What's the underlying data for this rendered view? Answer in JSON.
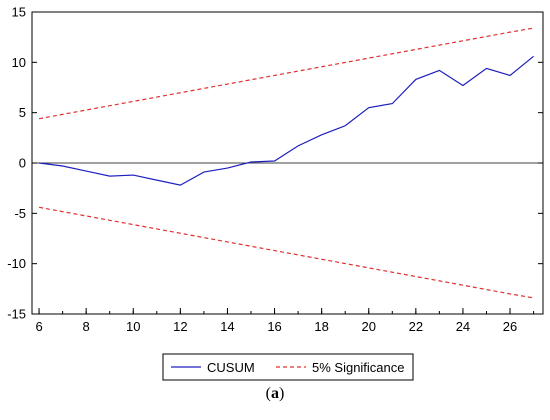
{
  "chart_data": {
    "type": "line",
    "x": [
      6,
      7,
      8,
      9,
      10,
      11,
      12,
      13,
      14,
      15,
      16,
      17,
      18,
      19,
      20,
      21,
      22,
      23,
      24,
      25,
      26,
      27
    ],
    "xticks": [
      6,
      8,
      10,
      12,
      14,
      16,
      18,
      20,
      22,
      24,
      26
    ],
    "xlim": [
      5.7,
      27.4
    ],
    "ylim": [
      -15,
      15
    ],
    "yticks": [
      -15,
      -10,
      -5,
      0,
      5,
      10,
      15
    ],
    "series": [
      {
        "name": "CUSUM",
        "color": "#1f1fbf",
        "dash": "none",
        "values": [
          0.0,
          -0.3,
          -0.8,
          -1.3,
          -1.2,
          -1.7,
          -2.2,
          -0.9,
          -0.5,
          0.1,
          0.2,
          1.7,
          2.8,
          3.7,
          5.5,
          5.9,
          8.3,
          9.2,
          7.7,
          9.4,
          8.7,
          10.6
        ]
      },
      {
        "name": "5% Significance",
        "color": "#e03030",
        "dash": "4,3",
        "values": [
          4.4,
          4.83,
          5.26,
          5.69,
          6.12,
          6.55,
          6.98,
          7.41,
          7.84,
          8.27,
          8.7,
          9.13,
          9.56,
          9.99,
          10.42,
          10.85,
          11.28,
          11.71,
          12.14,
          12.57,
          13.0,
          13.4
        ]
      },
      {
        "name": "",
        "color": "#e03030",
        "dash": "4,3",
        "values": [
          -4.4,
          -4.83,
          -5.26,
          -5.69,
          -6.12,
          -6.55,
          -6.98,
          -7.41,
          -7.84,
          -8.27,
          -8.7,
          -9.13,
          -9.56,
          -9.99,
          -10.42,
          -10.85,
          -11.28,
          -11.71,
          -12.14,
          -12.57,
          -13.0,
          -13.4
        ]
      }
    ],
    "legend": {
      "position": "bottom-center",
      "entries": [
        "CUSUM",
        "5% Significance"
      ]
    },
    "grid": false,
    "zero_line": true
  },
  "caption": {
    "open": "(",
    "label": "a",
    "close": ")"
  }
}
